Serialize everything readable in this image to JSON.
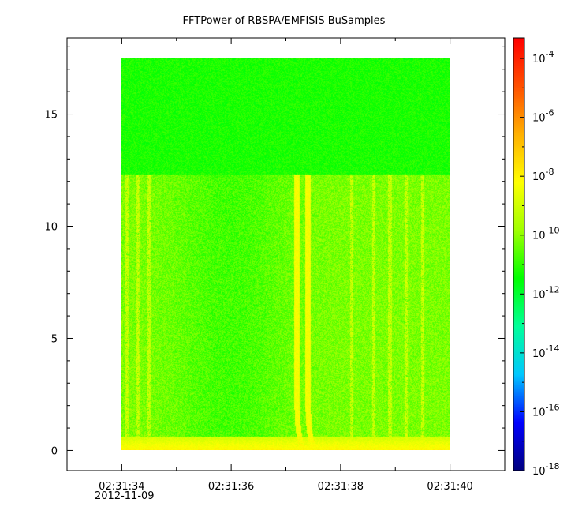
{
  "chart_data": {
    "type": "heatmap",
    "title": "FFTPower of RBSPA/EMFISIS  BuSamples",
    "xlabel": "",
    "ylabel": "",
    "x_ticks": [
      "02:31:34",
      "02:31:36",
      "02:31:38",
      "02:31:40"
    ],
    "x_date_label": "2012-11-09",
    "xlim": [
      "02:31:33.0",
      "02:31:41.0"
    ],
    "data_x_range": [
      "02:31:34",
      "02:31:40"
    ],
    "y_ticks": [
      0,
      5,
      10,
      15
    ],
    "ylim": [
      -0.9,
      18.4
    ],
    "data_y_range": [
      0,
      17.5
    ],
    "colorbar": {
      "scale": "log",
      "range": [
        "1e-18",
        "5e-4"
      ],
      "ticks": [
        {
          "base": "10",
          "exp": "-18",
          "value": -18
        },
        {
          "base": "10",
          "exp": "-16",
          "value": -16
        },
        {
          "base": "10",
          "exp": "-14",
          "value": -14
        },
        {
          "base": "10",
          "exp": "-12",
          "value": -12
        },
        {
          "base": "10",
          "exp": "-10",
          "value": -10
        },
        {
          "base": "10",
          "exp": "-8",
          "value": -8
        },
        {
          "base": "10",
          "exp": "-6",
          "value": -6
        },
        {
          "base": "10",
          "exp": "-4",
          "value": -4
        }
      ],
      "colormap": [
        "#00007f",
        "#0000ff",
        "#00c8ff",
        "#00ff9a",
        "#00ff00",
        "#a0ff00",
        "#ffff00",
        "#ffb000",
        "#ff5000",
        "#ff0000"
      ]
    },
    "features": {
      "background_log_power_low_freq": -10.2,
      "background_log_power_high_freq": -11.2,
      "high_freq_band_start": 12.3,
      "strong_burst_times": [
        "02:31:37.2",
        "02:31:37.4"
      ],
      "strong_burst_log_power": -8.3,
      "weak_burst_times": [
        "02:31:34.1",
        "02:31:34.3",
        "02:31:34.5",
        "02:31:38.2",
        "02:31:38.6",
        "02:31:38.9",
        "02:31:39.2",
        "02:31:39.5"
      ]
    }
  }
}
